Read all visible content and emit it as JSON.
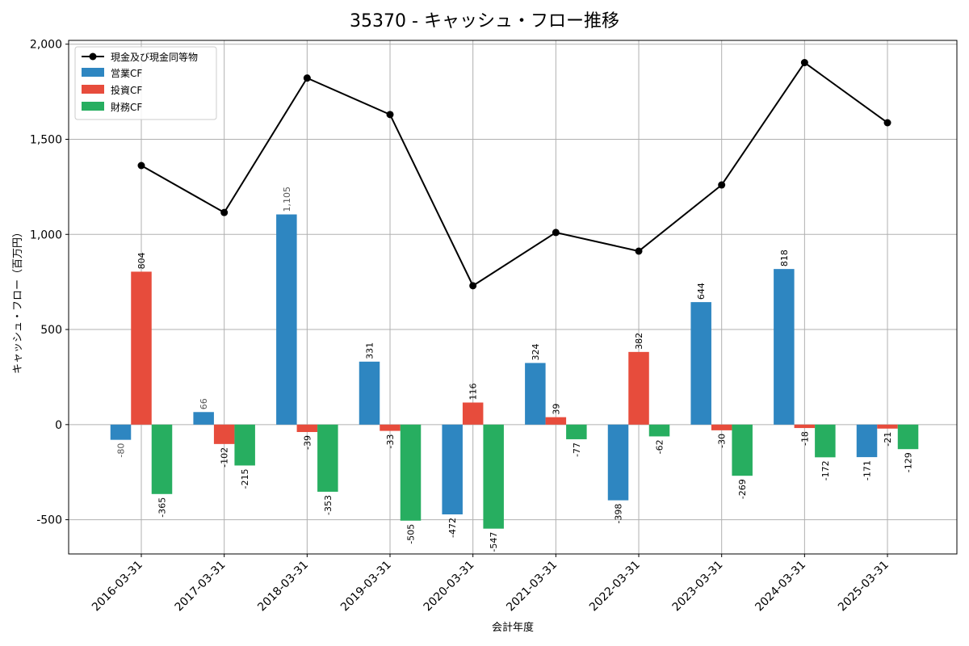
{
  "chart_data": {
    "type": "bar",
    "title": "35370 - キャッシュ・フロー推移",
    "xlabel": "会計年度",
    "ylabel": "キャッシュ・フロー（百万円）",
    "ylim": [
      -680,
      2020
    ],
    "yticks": [
      -500,
      0,
      500,
      1000,
      1500,
      2000
    ],
    "ytick_labels": [
      "-500",
      "0",
      "500",
      "1,000",
      "1,500",
      "2,000"
    ],
    "grid": true,
    "legend_position": "top-left",
    "categories": [
      "2016-03-31",
      "2017-03-31",
      "2018-03-31",
      "2019-03-31",
      "2020-03-31",
      "2021-03-31",
      "2022-03-31",
      "2023-03-31",
      "2024-03-31",
      "2025-03-31"
    ],
    "line_series": {
      "name": "現金及び現金同等物",
      "color": "#000000",
      "values": [
        1362,
        1115,
        1822,
        1630,
        730,
        1010,
        912,
        1260,
        1903,
        1587
      ]
    },
    "series": [
      {
        "name": "営業CF",
        "color": "#2e86c1",
        "values": [
          -80,
          66,
          1105,
          331,
          -472,
          324,
          -398,
          644,
          818,
          -171
        ],
        "labels": [
          "-80",
          "66",
          "1,105",
          "331",
          "-472",
          "324",
          "-398",
          "644",
          "818",
          "-171"
        ]
      },
      {
        "name": "投資CF",
        "color": "#e74c3c",
        "values": [
          804,
          -102,
          -39,
          -33,
          116,
          39,
          382,
          -30,
          -18,
          -21
        ],
        "labels": [
          "804",
          "-102",
          "-39",
          "-33",
          "116",
          "39",
          "382",
          "-30",
          "-18",
          "-21"
        ]
      },
      {
        "name": "財務CF",
        "color": "#27ae60",
        "values": [
          -365,
          -215,
          -353,
          -505,
          -547,
          -77,
          -62,
          -269,
          -172,
          -129
        ],
        "labels": [
          "-365",
          "-215",
          "-353",
          "-505",
          "-547",
          "-77",
          "-62",
          "-269",
          "-172",
          "-129"
        ]
      }
    ]
  }
}
